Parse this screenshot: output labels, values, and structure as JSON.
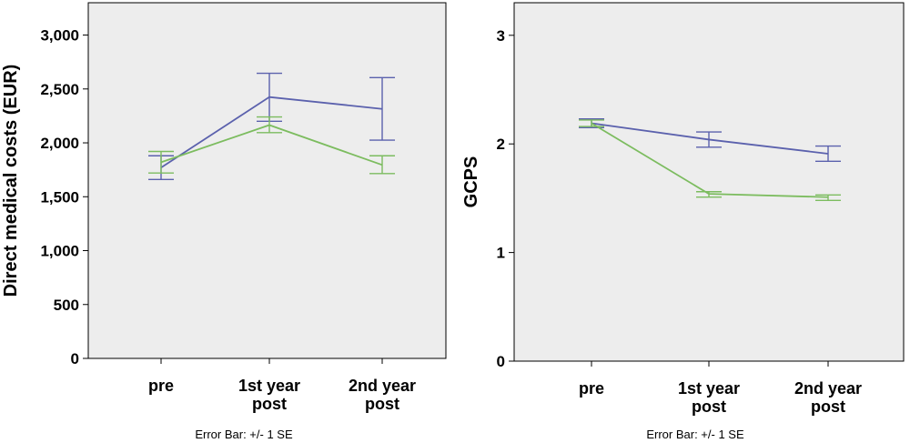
{
  "colors": {
    "series_blue": "#5b61ad",
    "series_green": "#7cbc5f",
    "plot_bg": "#ededed"
  },
  "chart_data": [
    {
      "type": "line",
      "categories": [
        "pre",
        "1st year|post",
        "2nd year|post"
      ],
      "ylabel": "Direct medical costs (EUR)",
      "ylim": [
        0,
        3300
      ],
      "yticks": [
        0,
        500,
        1000,
        1500,
        2000,
        2500,
        3000
      ],
      "ytick_labels": [
        "0",
        "500",
        "1,000",
        "1,500",
        "2,000",
        "2,500",
        "3,000"
      ],
      "footnote": "Error Bar: +/- 1 SE",
      "grid": false,
      "series": [
        {
          "color": "#5b61ad",
          "values": [
            1770,
            2425,
            2315
          ],
          "lower": [
            1660,
            2200,
            2025
          ],
          "upper": [
            1880,
            2645,
            2605
          ]
        },
        {
          "color": "#7cbc5f",
          "values": [
            1820,
            2165,
            1795
          ],
          "lower": [
            1720,
            2095,
            1715
          ],
          "upper": [
            1920,
            2240,
            1880
          ]
        }
      ]
    },
    {
      "type": "line",
      "categories": [
        "pre",
        "1st year|post",
        "2nd year|post"
      ],
      "ylabel": "GCPS",
      "ylim": [
        0,
        3.3
      ],
      "yticks": [
        0,
        1,
        2,
        3
      ],
      "ytick_labels": [
        "0",
        "1",
        "2",
        "3"
      ],
      "footnote": "Error Bar: +/- 1 SE",
      "grid": false,
      "series": [
        {
          "color": "#5b61ad",
          "values": [
            2.19,
            2.04,
            1.91
          ],
          "lower": [
            2.15,
            1.97,
            1.84
          ],
          "upper": [
            2.23,
            2.11,
            1.98
          ]
        },
        {
          "color": "#7cbc5f",
          "values": [
            2.19,
            1.54,
            1.51
          ],
          "lower": [
            2.16,
            1.51,
            1.48
          ],
          "upper": [
            2.22,
            1.56,
            1.53
          ]
        }
      ]
    }
  ]
}
